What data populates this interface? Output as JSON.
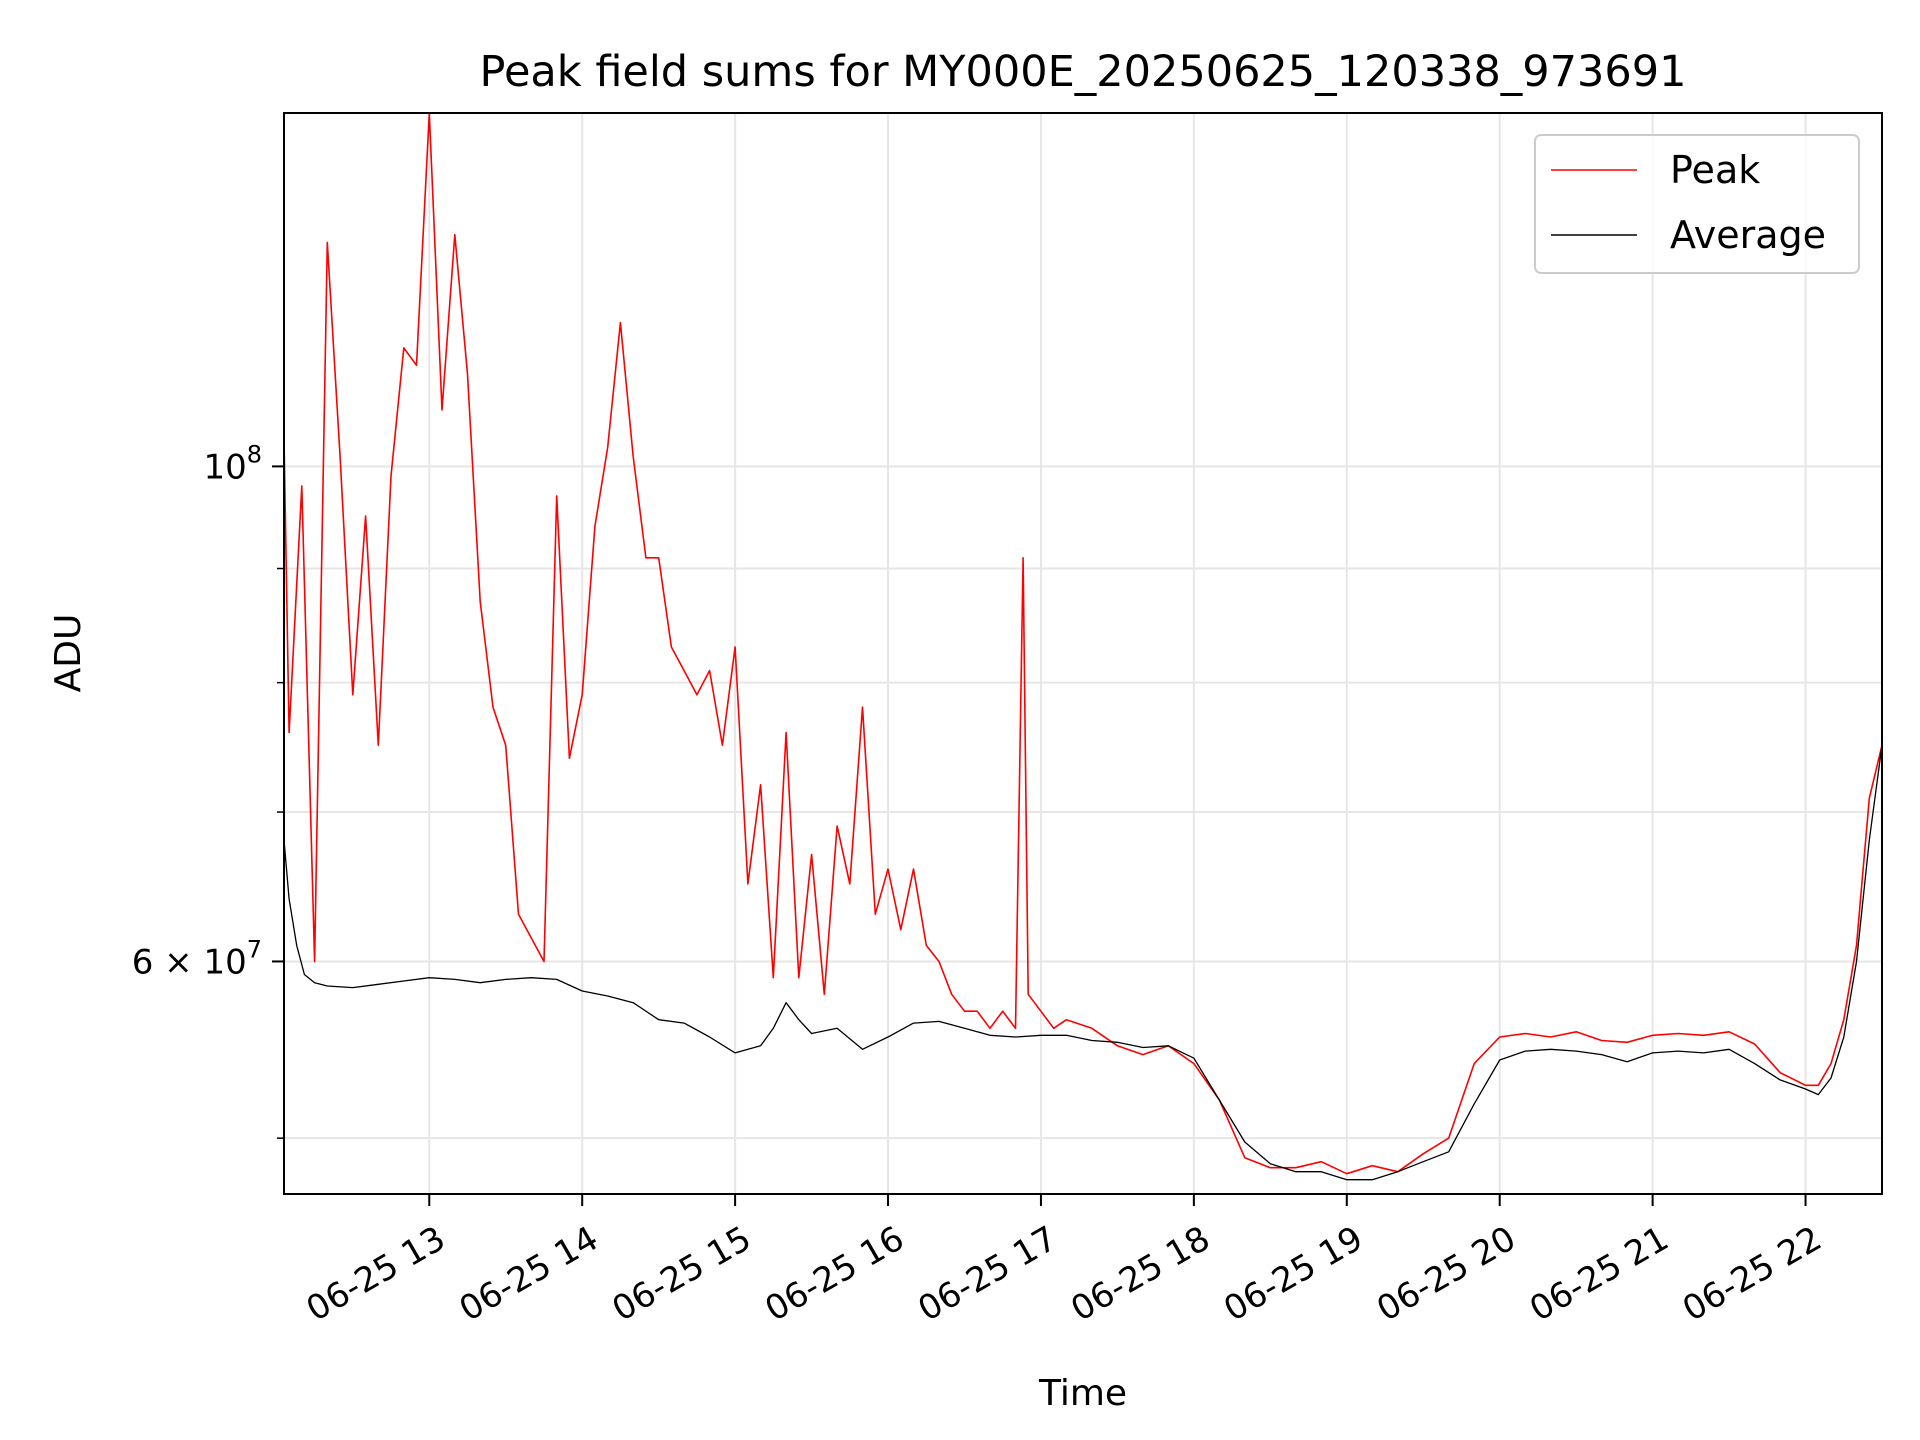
{
  "chart_data": {
    "type": "line",
    "title": "Peak field sums for MY000E_20250625_120338_973691",
    "xlabel": "Time",
    "ylabel": "ADU",
    "y_scale": "log",
    "ylim": [
      47200000,
      144000000
    ],
    "xlim": [
      "2025-06-25 12:03",
      "2025-06-25 22:30"
    ],
    "x_ticks": [
      "06-25 13",
      "06-25 14",
      "06-25 15",
      "06-25 16",
      "06-25 17",
      "06-25 18",
      "06-25 19",
      "06-25 20",
      "06-25 21",
      "06-25 22"
    ],
    "y_ticks": [
      {
        "value": 100000000,
        "base": "10",
        "exp": "8"
      },
      {
        "value": 60000000,
        "base": "6 × 10",
        "exp": "7"
      }
    ],
    "y_minor_ticks": [
      50000000,
      70000000,
      80000000,
      90000000
    ],
    "grid": true,
    "legend_position": "top-right",
    "series": [
      {
        "name": "Peak",
        "color": "#ff0000",
        "x": [
          "2025-06-25 12:03",
          "2025-06-25 12:05",
          "2025-06-25 12:10",
          "2025-06-25 12:15",
          "2025-06-25 12:20",
          "2025-06-25 12:25",
          "2025-06-25 12:30",
          "2025-06-25 12:35",
          "2025-06-25 12:40",
          "2025-06-25 12:45",
          "2025-06-25 12:50",
          "2025-06-25 12:55",
          "2025-06-25 13:00",
          "2025-06-25 13:05",
          "2025-06-25 13:10",
          "2025-06-25 13:15",
          "2025-06-25 13:20",
          "2025-06-25 13:25",
          "2025-06-25 13:30",
          "2025-06-25 13:35",
          "2025-06-25 13:45",
          "2025-06-25 13:50",
          "2025-06-25 13:55",
          "2025-06-25 14:00",
          "2025-06-25 14:05",
          "2025-06-25 14:10",
          "2025-06-25 14:15",
          "2025-06-25 14:20",
          "2025-06-25 14:25",
          "2025-06-25 14:30",
          "2025-06-25 14:35",
          "2025-06-25 14:40",
          "2025-06-25 14:45",
          "2025-06-25 14:50",
          "2025-06-25 14:55",
          "2025-06-25 15:00",
          "2025-06-25 15:05",
          "2025-06-25 15:10",
          "2025-06-25 15:15",
          "2025-06-25 15:20",
          "2025-06-25 15:25",
          "2025-06-25 15:30",
          "2025-06-25 15:35",
          "2025-06-25 15:40",
          "2025-06-25 15:45",
          "2025-06-25 15:50",
          "2025-06-25 15:55",
          "2025-06-25 16:00",
          "2025-06-25 16:05",
          "2025-06-25 16:10",
          "2025-06-25 16:15",
          "2025-06-25 16:20",
          "2025-06-25 16:25",
          "2025-06-25 16:30",
          "2025-06-25 16:35",
          "2025-06-25 16:40",
          "2025-06-25 16:45",
          "2025-06-25 16:50",
          "2025-06-25 16:53",
          "2025-06-25 16:55",
          "2025-06-25 17:00",
          "2025-06-25 17:05",
          "2025-06-25 17:10",
          "2025-06-25 17:20",
          "2025-06-25 17:30",
          "2025-06-25 17:40",
          "2025-06-25 17:50",
          "2025-06-25 18:00",
          "2025-06-25 18:10",
          "2025-06-25 18:20",
          "2025-06-25 18:30",
          "2025-06-25 18:40",
          "2025-06-25 18:50",
          "2025-06-25 19:00",
          "2025-06-25 19:10",
          "2025-06-25 19:20",
          "2025-06-25 19:30",
          "2025-06-25 19:40",
          "2025-06-25 19:50",
          "2025-06-25 20:00",
          "2025-06-25 20:10",
          "2025-06-25 20:20",
          "2025-06-25 20:30",
          "2025-06-25 20:40",
          "2025-06-25 20:50",
          "2025-06-25 21:00",
          "2025-06-25 21:10",
          "2025-06-25 21:20",
          "2025-06-25 21:30",
          "2025-06-25 21:40",
          "2025-06-25 21:50",
          "2025-06-25 22:00",
          "2025-06-25 22:05",
          "2025-06-25 22:10",
          "2025-06-25 22:15",
          "2025-06-25 22:20",
          "2025-06-25 22:25",
          "2025-06-25 22:30"
        ],
        "y": [
          103000000,
          76000000,
          98000000,
          60000000,
          126000000,
          101000000,
          79000000,
          95000000,
          75000000,
          99000000,
          113000000,
          111000000,
          144000000,
          106000000,
          127000000,
          110000000,
          87000000,
          78000000,
          75000000,
          63000000,
          60000000,
          97000000,
          74000000,
          79000000,
          94000000,
          102000000,
          116000000,
          101000000,
          91000000,
          91000000,
          83000000,
          81000000,
          79000000,
          81000000,
          75000000,
          83000000,
          65000000,
          72000000,
          59000000,
          76000000,
          59000000,
          67000000,
          58000000,
          69000000,
          65000000,
          78000000,
          63000000,
          66000000,
          62000000,
          66000000,
          61000000,
          60000000,
          58000000,
          57000000,
          57000000,
          56000000,
          57000000,
          56000000,
          91000000,
          58000000,
          57000000,
          56000000,
          56500000,
          56000000,
          55000000,
          54500000,
          55000000,
          54000000,
          52000000,
          49000000,
          48500000,
          48500000,
          48800000,
          48200000,
          48600000,
          48300000,
          49200000,
          50000000,
          54000000,
          55500000,
          55700000,
          55500000,
          55800000,
          55300000,
          55200000,
          55600000,
          55700000,
          55600000,
          55800000,
          55100000,
          53500000,
          52800000,
          52800000,
          54000000,
          56500000,
          61000000,
          71000000,
          75000000
        ]
      },
      {
        "name": "Average",
        "color": "#000000",
        "x": [
          "2025-06-25 12:03",
          "2025-06-25 12:05",
          "2025-06-25 12:08",
          "2025-06-25 12:11",
          "2025-06-25 12:15",
          "2025-06-25 12:20",
          "2025-06-25 12:30",
          "2025-06-25 12:40",
          "2025-06-25 12:50",
          "2025-06-25 13:00",
          "2025-06-25 13:10",
          "2025-06-25 13:20",
          "2025-06-25 13:30",
          "2025-06-25 13:40",
          "2025-06-25 13:50",
          "2025-06-25 14:00",
          "2025-06-25 14:10",
          "2025-06-25 14:20",
          "2025-06-25 14:30",
          "2025-06-25 14:40",
          "2025-06-25 14:50",
          "2025-06-25 15:00",
          "2025-06-25 15:10",
          "2025-06-25 15:15",
          "2025-06-25 15:20",
          "2025-06-25 15:25",
          "2025-06-25 15:30",
          "2025-06-25 15:40",
          "2025-06-25 15:50",
          "2025-06-25 16:00",
          "2025-06-25 16:10",
          "2025-06-25 16:20",
          "2025-06-25 16:30",
          "2025-06-25 16:40",
          "2025-06-25 16:50",
          "2025-06-25 17:00",
          "2025-06-25 17:10",
          "2025-06-25 17:20",
          "2025-06-25 17:30",
          "2025-06-25 17:40",
          "2025-06-25 17:50",
          "2025-06-25 18:00",
          "2025-06-25 18:10",
          "2025-06-25 18:20",
          "2025-06-25 18:30",
          "2025-06-25 18:40",
          "2025-06-25 18:50",
          "2025-06-25 19:00",
          "2025-06-25 19:10",
          "2025-06-25 19:20",
          "2025-06-25 19:30",
          "2025-06-25 19:40",
          "2025-06-25 19:50",
          "2025-06-25 20:00",
          "2025-06-25 20:10",
          "2025-06-25 20:20",
          "2025-06-25 20:30",
          "2025-06-25 20:40",
          "2025-06-25 20:50",
          "2025-06-25 21:00",
          "2025-06-25 21:10",
          "2025-06-25 21:20",
          "2025-06-25 21:30",
          "2025-06-25 21:40",
          "2025-06-25 21:50",
          "2025-06-25 22:00",
          "2025-06-25 22:05",
          "2025-06-25 22:10",
          "2025-06-25 22:15",
          "2025-06-25 22:20",
          "2025-06-25 22:25",
          "2025-06-25 22:30"
        ],
        "y": [
          68000000,
          64000000,
          61000000,
          59200000,
          58700000,
          58500000,
          58400000,
          58600000,
          58800000,
          59000000,
          58900000,
          58700000,
          58900000,
          59000000,
          58900000,
          58200000,
          57900000,
          57500000,
          56500000,
          56300000,
          55500000,
          54600000,
          55000000,
          56000000,
          57500000,
          56500000,
          55700000,
          56000000,
          54800000,
          55500000,
          56300000,
          56400000,
          56000000,
          55600000,
          55500000,
          55600000,
          55600000,
          55300000,
          55200000,
          54900000,
          55000000,
          54300000,
          52000000,
          49800000,
          48700000,
          48300000,
          48300000,
          47900000,
          47900000,
          48300000,
          48800000,
          49300000,
          51800000,
          54200000,
          54700000,
          54800000,
          54700000,
          54500000,
          54100000,
          54600000,
          54700000,
          54600000,
          54800000,
          54000000,
          53100000,
          52600000,
          52300000,
          53200000,
          55500000,
          60000000,
          68000000,
          75000000
        ]
      }
    ]
  }
}
